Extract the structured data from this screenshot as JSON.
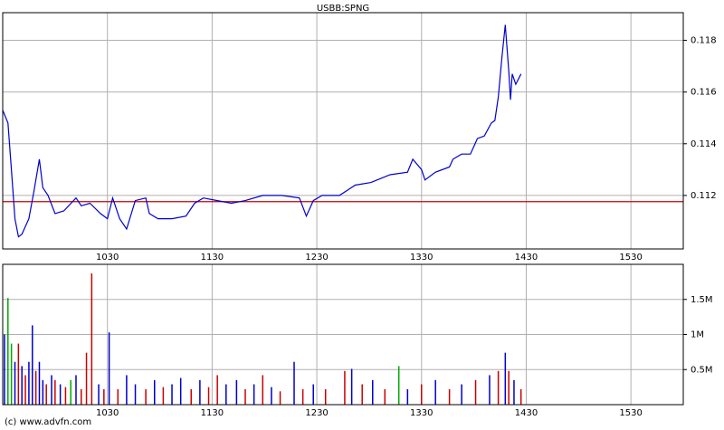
{
  "chart_data": [
    {
      "type": "line",
      "title": "USBB:SPNG",
      "x": [
        570,
        573,
        575,
        577,
        579,
        581,
        585,
        588,
        591,
        593,
        596,
        600,
        605,
        612,
        615,
        620,
        626,
        630,
        633,
        637,
        641,
        646,
        652,
        654,
        659,
        667,
        675,
        680,
        685,
        693,
        701,
        709,
        719,
        730,
        740,
        744,
        748,
        753,
        763,
        772,
        781,
        792,
        802,
        805,
        810,
        812,
        818,
        826,
        828,
        833,
        838,
        842,
        846,
        850,
        852,
        854,
        856,
        858,
        860,
        861,
        862,
        864,
        867
      ],
      "values": [
        0.1153,
        0.1148,
        0.113,
        0.1111,
        0.1104,
        0.1105,
        0.1111,
        0.1122,
        0.1134,
        0.1123,
        0.112,
        0.1113,
        0.1114,
        0.1119,
        0.1116,
        0.1117,
        0.1113,
        0.1111,
        0.1119,
        0.1111,
        0.1107,
        0.1118,
        0.1119,
        0.1113,
        0.1111,
        0.1111,
        0.1112,
        0.1117,
        0.1119,
        0.1118,
        0.1117,
        0.1118,
        0.112,
        0.112,
        0.1119,
        0.1112,
        0.1118,
        0.112,
        0.112,
        0.1124,
        0.1125,
        0.1128,
        0.1129,
        0.1134,
        0.113,
        0.1126,
        0.1129,
        0.1131,
        0.1134,
        0.1136,
        0.1136,
        0.1142,
        0.1143,
        0.1148,
        0.1149,
        0.1158,
        0.1173,
        0.1186,
        0.1168,
        0.1157,
        0.1167,
        0.1163,
        0.1167
      ],
      "color": "#0000cc",
      "reference_line": 0.11176,
      "reference_color": "#cc0000",
      "xlim": [
        570,
        960
      ],
      "xticks": [
        {
          "value": 630,
          "label": "1030"
        },
        {
          "value": 690,
          "label": "1130"
        },
        {
          "value": 750,
          "label": "1230"
        },
        {
          "value": 810,
          "label": "1330"
        },
        {
          "value": 870,
          "label": "1430"
        },
        {
          "value": 930,
          "label": "1530"
        }
      ],
      "ylim": [
        0.10993,
        0.11907
      ],
      "yticks": [
        0.112,
        0.114,
        0.116,
        0.118
      ],
      "grid": true
    },
    {
      "type": "bar",
      "x": [
        571,
        573,
        575,
        577,
        579,
        581,
        583,
        585,
        587,
        589,
        591,
        593,
        595,
        598,
        600,
        603,
        606,
        609,
        612,
        615,
        618,
        621,
        625,
        628,
        631,
        636,
        641,
        646,
        652,
        657,
        662,
        667,
        672,
        678,
        683,
        688,
        693,
        698,
        704,
        709,
        714,
        719,
        724,
        729,
        737,
        742,
        748,
        755,
        766,
        770,
        776,
        782,
        789,
        797,
        802,
        810,
        818,
        826,
        833,
        841,
        849,
        854,
        858,
        860,
        863,
        867
      ],
      "values": [
        1000000,
        1520000,
        870000,
        610000,
        870000,
        550000,
        420000,
        610000,
        1130000,
        480000,
        610000,
        350000,
        290000,
        420000,
        350000,
        290000,
        250000,
        350000,
        420000,
        220000,
        740000,
        1870000,
        290000,
        220000,
        1030000,
        220000,
        420000,
        290000,
        220000,
        350000,
        250000,
        290000,
        380000,
        220000,
        350000,
        250000,
        420000,
        290000,
        350000,
        220000,
        290000,
        420000,
        250000,
        190000,
        610000,
        220000,
        290000,
        220000,
        480000,
        510000,
        290000,
        350000,
        220000,
        550000,
        220000,
        290000,
        350000,
        220000,
        290000,
        350000,
        420000,
        480000,
        740000,
        480000,
        350000,
        220000
      ],
      "colors": [
        "#0000cc",
        "#00aa00",
        "#00aa00",
        "#0000cc",
        "#cc0000",
        "#0000cc",
        "#cc0000",
        "#0000cc",
        "#0000cc",
        "#cc0000",
        "#0000cc",
        "#0000cc",
        "#cc0000",
        "#0000cc",
        "#cc0000",
        "#0000cc",
        "#cc0000",
        "#00aa00",
        "#0000cc",
        "#cc0000",
        "#cc0000",
        "#cc0000",
        "#0000cc",
        "#cc0000",
        "#0000cc",
        "#cc0000",
        "#0000cc",
        "#0000cc",
        "#cc0000",
        "#0000cc",
        "#cc0000",
        "#0000cc",
        "#0000cc",
        "#cc0000",
        "#0000cc",
        "#cc0000",
        "#cc0000",
        "#0000cc",
        "#0000cc",
        "#cc0000",
        "#0000cc",
        "#cc0000",
        "#0000cc",
        "#cc0000",
        "#0000cc",
        "#cc0000",
        "#0000cc",
        "#cc0000",
        "#cc0000",
        "#0000cc",
        "#cc0000",
        "#0000cc",
        "#cc0000",
        "#00aa00",
        "#0000cc",
        "#cc0000",
        "#0000cc",
        "#cc0000",
        "#0000cc",
        "#cc0000",
        "#0000cc",
        "#cc0000",
        "#0000cc",
        "#cc0000",
        "#0000cc",
        "#cc0000"
      ],
      "xlim": [
        570,
        960
      ],
      "xticks": [
        {
          "value": 630,
          "label": "1030"
        },
        {
          "value": 690,
          "label": "1130"
        },
        {
          "value": 750,
          "label": "1230"
        },
        {
          "value": 810,
          "label": "1330"
        },
        {
          "value": 870,
          "label": "1430"
        },
        {
          "value": 930,
          "label": "1530"
        }
      ],
      "ylim": [
        0,
        2000000
      ],
      "yticks": [
        {
          "value": 500000,
          "label": "0.5M"
        },
        {
          "value": 1000000,
          "label": "1M"
        },
        {
          "value": 1500000,
          "label": "1.5M"
        }
      ],
      "grid": true
    }
  ],
  "footer": "(c) www.advfn.com"
}
